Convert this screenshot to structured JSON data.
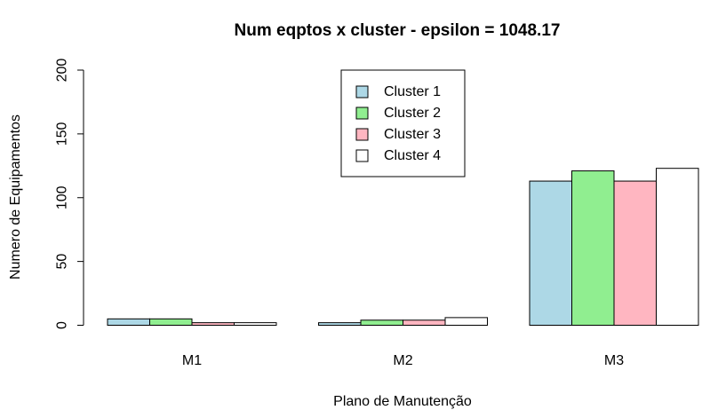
{
  "chart_data": {
    "type": "bar",
    "title": "Num eqptos x cluster - epsilon =  1048.17",
    "xlabel": "Plano de Manutenção",
    "ylabel": "Numero de Equipamentos",
    "categories": [
      "M1",
      "M2",
      "M3"
    ],
    "ylim": [
      0,
      200
    ],
    "yticks": [
      0,
      50,
      100,
      150,
      200
    ],
    "grid": false,
    "legend_position": "top-center",
    "series": [
      {
        "name": "Cluster 1",
        "color": "#add8e6",
        "values": [
          5,
          2,
          113
        ]
      },
      {
        "name": "Cluster 2",
        "color": "#90ee90",
        "values": [
          5,
          4,
          121
        ]
      },
      {
        "name": "Cluster 3",
        "color": "#ffb6c1",
        "values": [
          2,
          4,
          113
        ]
      },
      {
        "name": "Cluster 4",
        "color": "#ffffff",
        "values": [
          2,
          6,
          123
        ]
      }
    ]
  }
}
